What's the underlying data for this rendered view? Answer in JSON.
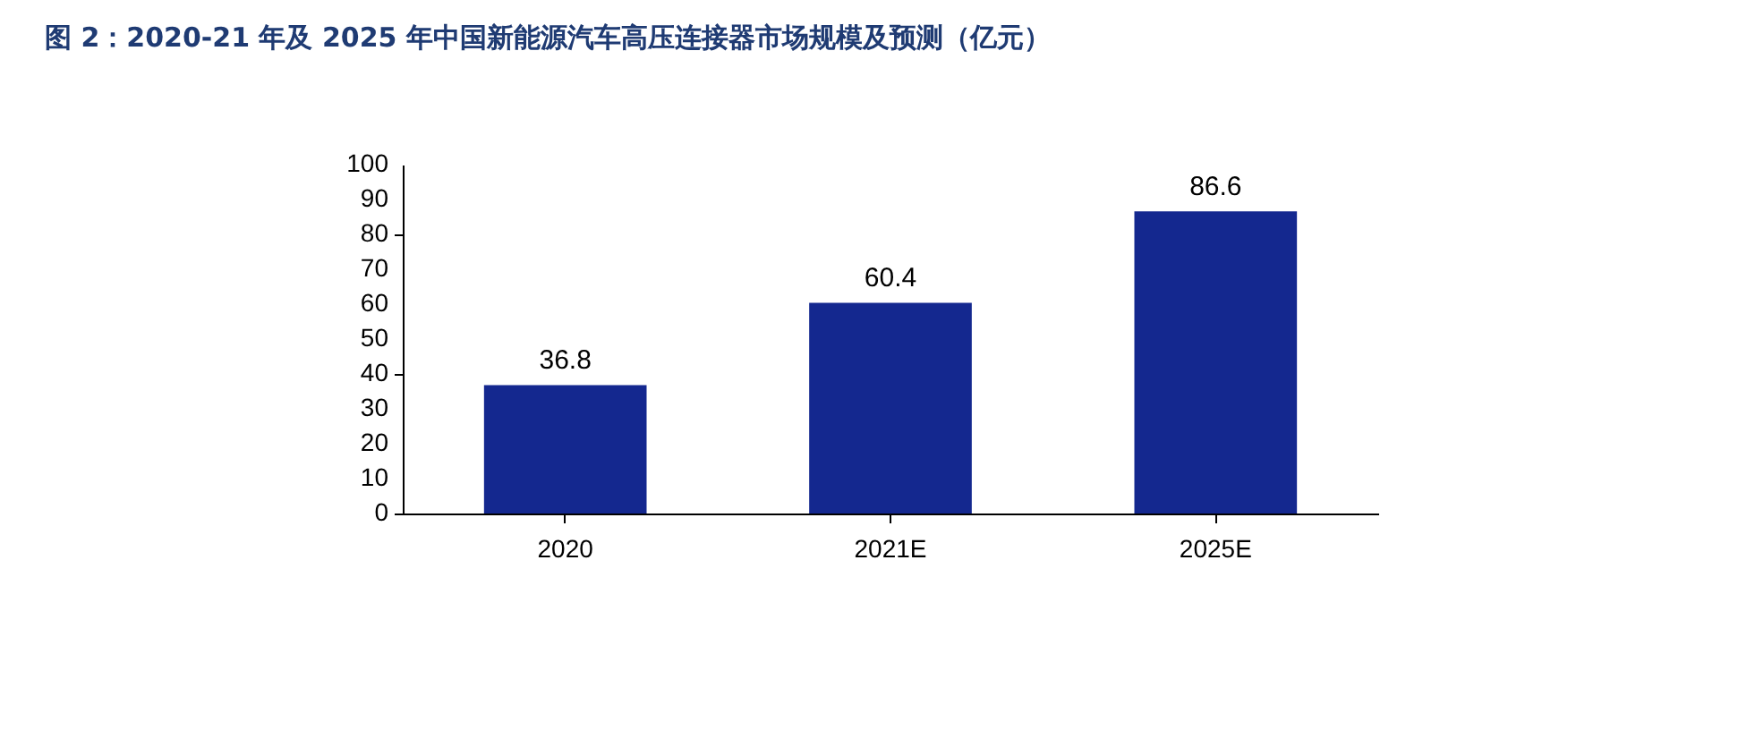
{
  "chart_data": {
    "type": "bar",
    "title": "图 2：2020-21 年及 2025 年中国新能源汽车高压连接器市场规模及预测（亿元）",
    "categories": [
      "2020",
      "2021E",
      "2025E"
    ],
    "values": [
      36.8,
      60.4,
      86.6
    ],
    "color": "#14288f",
    "ylim": [
      0,
      100
    ],
    "yticks": [
      0,
      10,
      20,
      30,
      40,
      50,
      60,
      70,
      80,
      90,
      100
    ],
    "grid": false,
    "data_labels": true
  }
}
